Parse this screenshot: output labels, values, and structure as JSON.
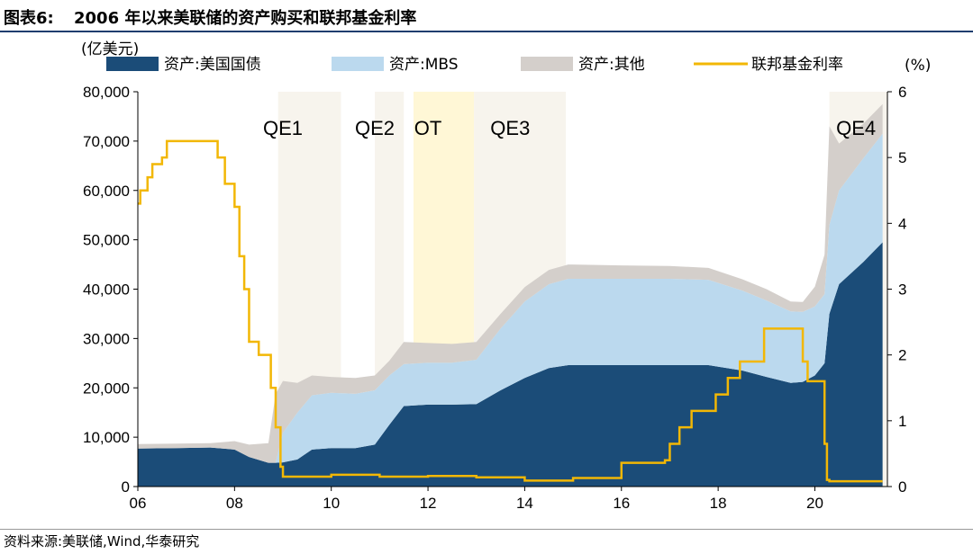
{
  "header": {
    "label": "图表6:",
    "title": "2006 年以来美联储的资产购买和联邦基金利率"
  },
  "source": "资料来源:美联储,Wind,华泰研究",
  "chart_data": {
    "type": "area",
    "title": "2006 年以来美联储的资产购买和联邦基金利率",
    "y_left_unit": "(亿美元)",
    "y_right_unit": "(%)",
    "ylim_left": [
      0,
      80000
    ],
    "ylim_right": [
      0,
      6
    ],
    "xlim": [
      2006,
      2021.5
    ],
    "x_tick_labels": [
      "06",
      "08",
      "10",
      "12",
      "14",
      "16",
      "18",
      "20"
    ],
    "x_tick_values": [
      2006,
      2008,
      2010,
      2012,
      2014,
      2016,
      2018,
      2020
    ],
    "y_left_tick_labels": [
      "0",
      "10,000",
      "20,000",
      "30,000",
      "40,000",
      "50,000",
      "60,000",
      "70,000",
      "80,000"
    ],
    "y_left_tick_values": [
      0,
      10000,
      20000,
      30000,
      40000,
      50000,
      60000,
      70000,
      80000
    ],
    "y_right_tick_labels": [
      "0",
      "1",
      "2",
      "3",
      "4",
      "5",
      "6"
    ],
    "y_right_tick_values": [
      0,
      1,
      2,
      3,
      4,
      5,
      6
    ],
    "legend_position": "top",
    "x": [
      2006.0,
      2006.8,
      2007.5,
      2008.0,
      2008.3,
      2008.7,
      2008.85,
      2009.0,
      2009.3,
      2009.6,
      2010.0,
      2010.5,
      2010.9,
      2011.2,
      2011.5,
      2012.0,
      2012.5,
      2013.0,
      2013.5,
      2014.0,
      2014.5,
      2014.9,
      2015.5,
      2016.0,
      2017.0,
      2017.8,
      2018.5,
      2019.0,
      2019.5,
      2019.75,
      2020.0,
      2020.2,
      2020.3,
      2020.5,
      2021.0,
      2021.4
    ],
    "series": [
      {
        "name": "资产:美国国债",
        "color": "#1b4c78",
        "values": [
          7700,
          7800,
          7900,
          7500,
          6000,
          4800,
          4800,
          4900,
          5500,
          7500,
          7800,
          7800,
          8500,
          12500,
          16300,
          16600,
          16600,
          16700,
          19500,
          22000,
          24000,
          24600,
          24600,
          24600,
          24600,
          24600,
          23500,
          22200,
          21000,
          21200,
          22500,
          25000,
          35000,
          41000,
          45500,
          49500
        ]
      },
      {
        "name": "资产:MBS",
        "color": "#bbd9ee",
        "values": [
          0,
          0,
          0,
          0,
          0,
          0,
          0,
          6000,
          9500,
          11000,
          11200,
          11000,
          11000,
          10000,
          8500,
          8500,
          8500,
          9000,
          12500,
          15500,
          17000,
          17500,
          17500,
          17500,
          17500,
          17300,
          16200,
          15500,
          14500,
          14200,
          14000,
          14000,
          18000,
          19000,
          21000,
          22000
        ]
      },
      {
        "name": "资产:其他",
        "color": "#d4cfcb",
        "values": [
          900,
          900,
          900,
          1700,
          2500,
          4000,
          14000,
          10500,
          6000,
          4000,
          3200,
          3200,
          3000,
          3000,
          4500,
          4000,
          3800,
          3600,
          3000,
          2900,
          2900,
          2900,
          2800,
          2700,
          2600,
          2400,
          2300,
          2300,
          2000,
          2000,
          4000,
          8000,
          20000,
          9500,
          7000,
          6000
        ]
      },
      {
        "name": "联邦基金利率",
        "color": "#f2b705",
        "axis": "right",
        "x": [
          2006.0,
          2006.05,
          2006.2,
          2006.3,
          2006.5,
          2006.6,
          2007.0,
          2007.5,
          2007.65,
          2007.8,
          2008.0,
          2008.1,
          2008.2,
          2008.3,
          2008.5,
          2008.65,
          2008.75,
          2008.85,
          2008.95,
          2009.0,
          2010.0,
          2011.0,
          2012.0,
          2013.0,
          2014.0,
          2015.0,
          2015.95,
          2016.0,
          2016.9,
          2017.0,
          2017.2,
          2017.45,
          2017.7,
          2017.95,
          2018.2,
          2018.45,
          2018.7,
          2018.95,
          2019.55,
          2019.75,
          2019.85,
          2020.1,
          2020.2,
          2020.25,
          2020.3,
          2021.0,
          2021.4
        ],
        "values": [
          4.3,
          4.5,
          4.7,
          4.9,
          5.0,
          5.25,
          5.25,
          5.25,
          5.0,
          4.6,
          4.25,
          3.5,
          3.0,
          2.2,
          2.0,
          2.0,
          1.5,
          0.9,
          0.3,
          0.15,
          0.18,
          0.15,
          0.16,
          0.14,
          0.09,
          0.13,
          0.13,
          0.36,
          0.4,
          0.65,
          0.9,
          1.15,
          1.15,
          1.4,
          1.65,
          1.9,
          1.9,
          2.4,
          2.4,
          1.9,
          1.6,
          1.6,
          0.65,
          0.1,
          0.08,
          0.08,
          0.08
        ]
      }
    ],
    "annotations": [
      {
        "label": "QE1",
        "x_start": 2008.9,
        "x_end": 2010.2,
        "label_x": 2009.0
      },
      {
        "label": "QE2",
        "x_start": 2010.9,
        "x_end": 2011.5,
        "label_x": 2010.9
      },
      {
        "label": "OT",
        "x_start": 2011.7,
        "x_end": 2012.95,
        "label_x": 2012.0
      },
      {
        "label": "QE3",
        "x_start": 2012.95,
        "x_end": 2014.85,
        "label_x": 2013.7
      },
      {
        "label": "QE4",
        "x_start": 2020.3,
        "x_end": 2021.5,
        "label_x": 2020.85
      }
    ]
  }
}
